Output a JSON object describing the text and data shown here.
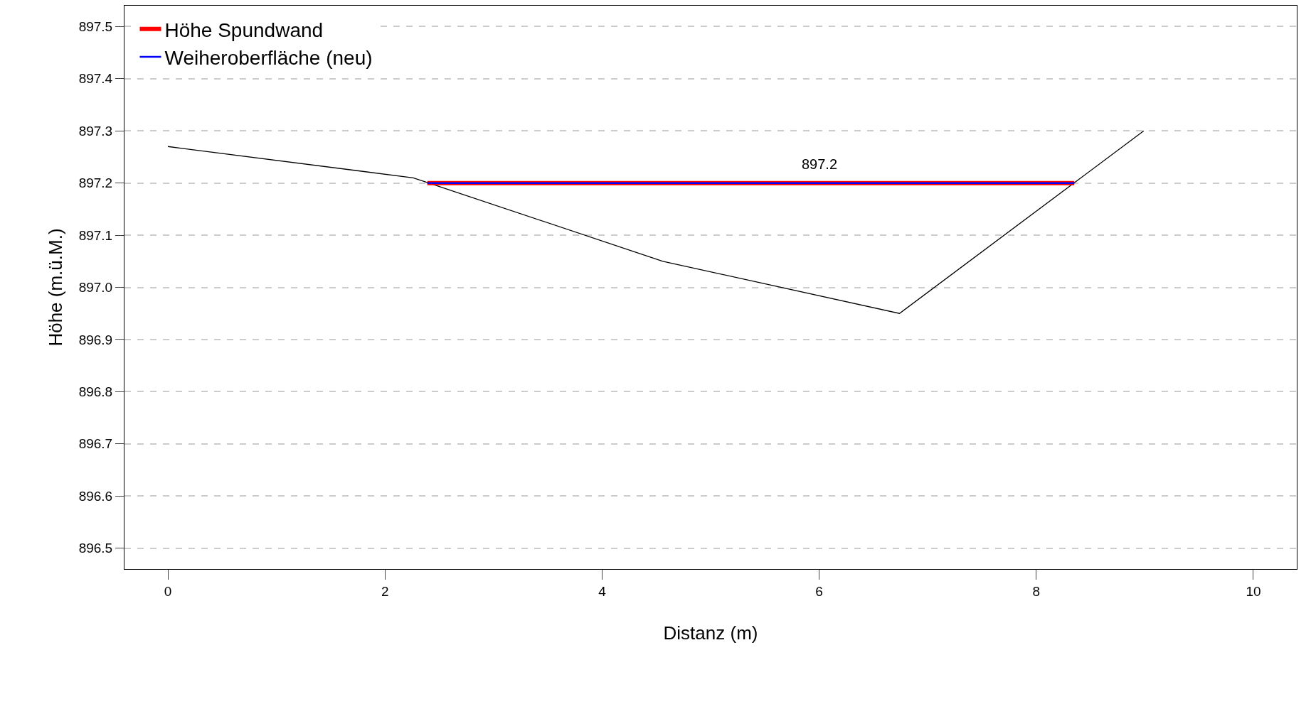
{
  "chart_data": {
    "type": "line",
    "xlabel": "Distanz (m)",
    "ylabel": "Höhe (m.ü.M.)",
    "xlim": [
      -0.4,
      10.4
    ],
    "ylim": [
      896.46,
      897.54
    ],
    "xticks": [
      0,
      2,
      4,
      6,
      8,
      10
    ],
    "yticks": [
      {
        "value": 896.5,
        "label": "896.5"
      },
      {
        "value": 896.6,
        "label": "896.6"
      },
      {
        "value": 896.7,
        "label": "896.7"
      },
      {
        "value": 896.8,
        "label": "896.8"
      },
      {
        "value": 896.9,
        "label": "896.9"
      },
      {
        "value": 897.0,
        "label": "897.0"
      },
      {
        "value": 897.1,
        "label": "897.1"
      },
      {
        "value": 897.2,
        "label": "897.2"
      },
      {
        "value": 897.3,
        "label": "897.3"
      },
      {
        "value": 897.4,
        "label": "897.4"
      },
      {
        "value": 897.5,
        "label": "897.5"
      }
    ],
    "grid": "y",
    "legend": "top left",
    "marker": "none",
    "series": [
      {
        "color": "#000000",
        "x": [
          0,
          2.26,
          4.56,
          6.74,
          8.99
        ],
        "values": [
          897.27,
          897.21,
          897.05,
          896.95,
          897.3
        ]
      },
      {
        "name": "Höhe Spundwand",
        "color": "#ff0000",
        "x": [
          2.39,
          8.35
        ],
        "values": [
          897.2,
          897.2
        ]
      },
      {
        "name": "Weiheroberfläche (neu)",
        "color": "#0000ff",
        "x": [
          2.39,
          8.35
        ],
        "values": [
          897.2,
          897.2
        ]
      }
    ],
    "annotations": [
      {
        "text": "897.2",
        "x": 6,
        "y": 897.2
      }
    ]
  }
}
